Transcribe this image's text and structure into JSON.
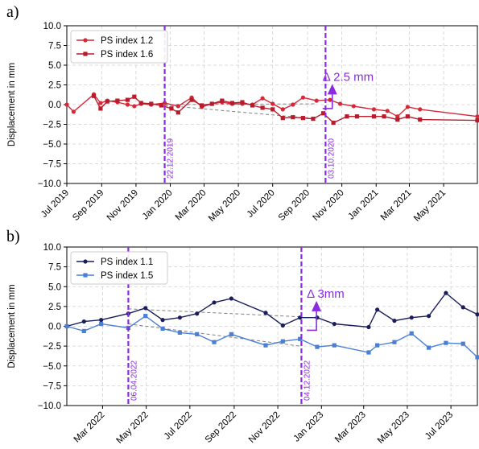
{
  "chart_data": [
    {
      "panel_label": "a)",
      "type": "line",
      "ylabel": "Displacement in mm",
      "ylim": [
        -10,
        10
      ],
      "yticks": [
        "10.0",
        "7.5",
        "5.0",
        "2.5",
        "0.0",
        "−2.5",
        "−5.0",
        "−7.5",
        "−10.0"
      ],
      "ytick_values": [
        10,
        7.5,
        5,
        2.5,
        0,
        -2.5,
        -5,
        -7.5,
        -10
      ],
      "xlim": [
        "2019-07-01",
        "2021-06-30"
      ],
      "xticks": [
        "Jul 2019",
        "Sep 2019",
        "Nov 2019",
        "Jan 2020",
        "Mar 2020",
        "May 2020",
        "Jul 2020",
        "Sep 2020",
        "Nov 2020",
        "Jan 2021",
        "Mar 2021",
        "May 2021"
      ],
      "xtick_dates": [
        "2019-07-01",
        "2019-09-01",
        "2019-11-01",
        "2020-01-01",
        "2020-03-01",
        "2020-05-01",
        "2020-07-01",
        "2020-09-01",
        "2020-11-01",
        "2021-01-01",
        "2021-03-01",
        "2021-05-01"
      ],
      "grid": true,
      "legend_position": "top-left",
      "series": [
        {
          "name": "PS index 1.2",
          "color": "#d62839",
          "marker": "circle",
          "x": [
            "2019-07-01",
            "2019-07-13",
            "2019-08-18",
            "2019-08-30",
            "2019-09-11",
            "2019-09-29",
            "2019-10-17",
            "2019-10-29",
            "2019-11-10",
            "2019-11-28",
            "2019-12-22",
            "2020-01-15",
            "2020-02-08",
            "2020-02-26",
            "2020-03-15",
            "2020-04-02",
            "2020-04-20",
            "2020-05-08",
            "2020-05-26",
            "2020-06-13",
            "2020-07-01",
            "2020-07-19",
            "2020-08-06",
            "2020-08-24",
            "2020-09-17",
            "2020-10-11",
            "2020-10-29",
            "2020-11-22",
            "2020-12-28",
            "2021-01-21",
            "2021-02-08",
            "2021-02-26",
            "2021-03-20",
            "2021-06-30"
          ],
          "values": [
            0.0,
            -0.9,
            1.3,
            0.2,
            0.5,
            0.3,
            0.0,
            -0.2,
            0.1,
            0.0,
            0.2,
            -0.2,
            0.9,
            -0.3,
            0.1,
            0.3,
            0.1,
            0.1,
            0.0,
            0.8,
            0.1,
            -0.6,
            0.0,
            0.9,
            0.5,
            0.6,
            0.1,
            -0.2,
            -0.6,
            -0.8,
            -1.5,
            -0.3,
            -0.6,
            -1.5
          ]
        },
        {
          "name": "PS index 1.6",
          "color": "#b71c2c",
          "marker": "square",
          "x": [
            "2019-08-18",
            "2019-08-30",
            "2019-09-11",
            "2019-09-29",
            "2019-10-17",
            "2019-10-29",
            "2019-11-10",
            "2019-11-28",
            "2019-12-16",
            "2020-01-03",
            "2020-01-15",
            "2020-02-08",
            "2020-02-26",
            "2020-03-15",
            "2020-04-02",
            "2020-04-20",
            "2020-05-08",
            "2020-05-26",
            "2020-06-13",
            "2020-07-01",
            "2020-07-19",
            "2020-08-06",
            "2020-08-24",
            "2020-09-11",
            "2020-09-29",
            "2020-10-17",
            "2020-11-10",
            "2020-11-28",
            "2020-12-28",
            "2021-01-15",
            "2021-02-08",
            "2021-02-26",
            "2021-03-20",
            "2021-06-30"
          ],
          "values": [
            1.1,
            -0.5,
            0.4,
            0.5,
            0.6,
            1.0,
            0.2,
            0.1,
            -0.1,
            -0.5,
            -1.0,
            0.6,
            -0.1,
            0.1,
            0.5,
            0.2,
            0.3,
            -0.1,
            -0.4,
            -0.6,
            -1.7,
            -1.6,
            -1.7,
            -1.8,
            -1.1,
            -2.3,
            -1.5,
            -1.5,
            -1.5,
            -1.5,
            -1.9,
            -1.5,
            -1.9,
            -2.0
          ]
        }
      ],
      "trend_lines": [
        {
          "x": [
            "2019-12-22",
            "2020-09-17"
          ],
          "values": [
            0.0,
            0.1
          ]
        },
        {
          "x": [
            "2019-12-22",
            "2020-09-17"
          ],
          "values": [
            -0.1,
            -1.8
          ]
        }
      ],
      "event_lines": [
        {
          "date": "2019-12-22",
          "label": "22.12.2019"
        },
        {
          "date": "2020-10-03",
          "label": "03.10.2020"
        }
      ],
      "annotation": {
        "text": "Δ 2.5 mm",
        "date": "2020-10-15",
        "from": -0.5,
        "to": 2.0
      }
    },
    {
      "panel_label": "b)",
      "type": "line",
      "ylabel": "Displacement in mm",
      "ylim": [
        -10,
        10
      ],
      "yticks": [
        "10.0",
        "7.5",
        "5.0",
        "2.5",
        "0.0",
        "−2.5",
        "−5.0",
        "−7.5",
        "−10.0"
      ],
      "ytick_values": [
        10,
        7.5,
        5,
        2.5,
        0,
        -2.5,
        -5,
        -7.5,
        -10
      ],
      "xlim": [
        "2022-01-10",
        "2023-08-07"
      ],
      "xticks": [
        "Mar 2022",
        "May 2022",
        "Jul 2022",
        "Sep 2022",
        "Nov 2022",
        "Jan 2023",
        "Mar 2023",
        "May 2023",
        "Jul 2023"
      ],
      "xtick_dates": [
        "2022-03-01",
        "2022-05-01",
        "2022-07-01",
        "2022-09-01",
        "2022-11-01",
        "2023-01-01",
        "2023-03-01",
        "2023-05-01",
        "2023-07-01"
      ],
      "grid": true,
      "legend_position": "top-left",
      "series": [
        {
          "name": "PS index 1.1",
          "color": "#1a1f5c",
          "marker": "circle",
          "x": [
            "2022-01-10",
            "2022-02-03",
            "2022-02-27",
            "2022-04-06",
            "2022-04-30",
            "2022-05-24",
            "2022-06-17",
            "2022-07-11",
            "2022-08-04",
            "2022-08-28",
            "2022-10-15",
            "2022-11-08",
            "2022-12-02",
            "2022-12-26",
            "2023-01-19",
            "2023-03-08",
            "2023-03-20",
            "2023-04-13",
            "2023-05-07",
            "2023-05-31",
            "2023-06-24",
            "2023-07-18",
            "2023-08-07"
          ],
          "values": [
            0.0,
            0.6,
            0.8,
            1.6,
            2.3,
            0.8,
            1.1,
            1.6,
            3.0,
            3.5,
            1.7,
            0.1,
            1.1,
            1.1,
            0.3,
            -0.1,
            2.1,
            0.7,
            1.1,
            1.3,
            4.2,
            2.4,
            1.5
          ]
        },
        {
          "name": "PS index 1.5",
          "color": "#4a7fd6",
          "marker": "square",
          "x": [
            "2022-01-10",
            "2022-02-03",
            "2022-02-27",
            "2022-04-06",
            "2022-04-30",
            "2022-05-24",
            "2022-06-17",
            "2022-07-11",
            "2022-08-04",
            "2022-08-28",
            "2022-10-15",
            "2022-11-08",
            "2022-12-02",
            "2022-12-26",
            "2023-01-19",
            "2023-03-08",
            "2023-03-20",
            "2023-04-13",
            "2023-05-07",
            "2023-05-31",
            "2023-06-24",
            "2023-07-18",
            "2023-08-07"
          ],
          "values": [
            0.0,
            -0.6,
            0.3,
            -0.2,
            1.3,
            -0.3,
            -0.8,
            -1.0,
            -2.0,
            -1.0,
            -2.4,
            -1.9,
            -1.6,
            -2.6,
            -2.4,
            -3.3,
            -2.4,
            -2.0,
            -0.9,
            -2.7,
            -2.1,
            -2.2,
            -3.9
          ]
        }
      ],
      "trend_lines": [
        {
          "x": [
            "2022-04-06",
            "2022-12-02"
          ],
          "values": [
            2.2,
            1.2
          ]
        },
        {
          "x": [
            "2022-04-06",
            "2022-12-02"
          ],
          "values": [
            0.3,
            -2.5
          ]
        }
      ],
      "event_lines": [
        {
          "date": "2022-04-06",
          "label": "06.04.2022"
        },
        {
          "date": "2022-12-04",
          "label": "04.12.2022"
        }
      ],
      "annotation": {
        "text": "Δ 3mm",
        "date": "2022-12-25",
        "from": -0.5,
        "to": 2.6
      }
    }
  ]
}
